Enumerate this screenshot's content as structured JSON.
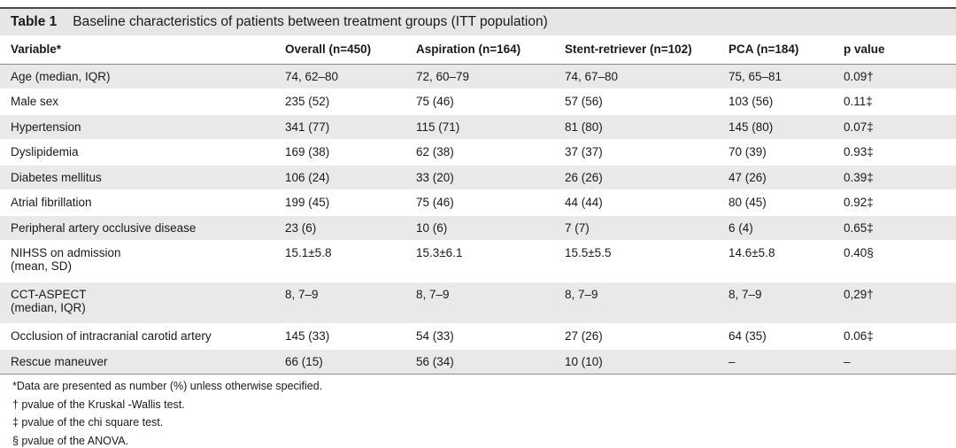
{
  "table": {
    "number": "Table 1",
    "caption": "Baseline characteristics of patients between treatment groups (ITT population)",
    "headers": [
      "Variable*",
      "Overall (n=450)",
      "Aspiration (n=164)",
      "Stent-retriever (n=102)",
      "PCA (n=184)",
      "p value"
    ],
    "rows": [
      {
        "variable": [
          "Age (median, IQR)"
        ],
        "overall": "74, 62–80",
        "aspiration": "72, 60–79",
        "stent": "74, 67–80",
        "pca": "75, 65–81",
        "p": "0.09†"
      },
      {
        "variable": [
          "Male sex"
        ],
        "overall": "235 (52)",
        "aspiration": "75 (46)",
        "stent": "57 (56)",
        "pca": "103 (56)",
        "p": "0.11‡"
      },
      {
        "variable": [
          "Hypertension"
        ],
        "overall": "341 (77)",
        "aspiration": "115 (71)",
        "stent": "81 (80)",
        "pca": "145 (80)",
        "p": "0.07‡"
      },
      {
        "variable": [
          "Dyslipidemia"
        ],
        "overall": "169 (38)",
        "aspiration": "62 (38)",
        "stent": "37 (37)",
        "pca": "70 (39)",
        "p": "0.93‡"
      },
      {
        "variable": [
          "Diabetes mellitus"
        ],
        "overall": "106 (24)",
        "aspiration": "33 (20)",
        "stent": "26 (26)",
        "pca": "47 (26)",
        "p": "0.39‡"
      },
      {
        "variable": [
          "Atrial fibrillation"
        ],
        "overall": "199 (45)",
        "aspiration": "75 (46)",
        "stent": "44 (44)",
        "pca": "80 (45)",
        "p": "0.92‡"
      },
      {
        "variable": [
          "Peripheral artery occlusive disease"
        ],
        "overall": "23 (6)",
        "aspiration": "10 (6)",
        "stent": "7 (7)",
        "pca": "6 (4)",
        "p": "0.65‡"
      },
      {
        "variable": [
          "NIHSS on admission",
          "(mean, SD)"
        ],
        "overall": "15.1±5.8",
        "aspiration": "15.3±6.1",
        "stent": "15.5±5.5",
        "pca": "14.6±5.8",
        "p": "0.40§"
      },
      {
        "variable": [
          "CCT-ASPECT",
          "(median, IQR)"
        ],
        "overall": "8, 7–9",
        "aspiration": "8, 7–9",
        "stent": "8, 7–9",
        "pca": "8, 7–9",
        "p": "0,29†"
      },
      {
        "variable": [
          "Occlusion of intracranial carotid artery"
        ],
        "overall": "145 (33)",
        "aspiration": "54 (33)",
        "stent": "27 (26)",
        "pca": "64 (35)",
        "p": "0.06‡"
      },
      {
        "variable": [
          "Rescue maneuver"
        ],
        "overall": "66 (15)",
        "aspiration": "56 (34)",
        "stent": "10 (10)",
        "pca": "–",
        "p": "–"
      }
    ],
    "footnotes": [
      "*Data are presented as number (%) unless otherwise specified.",
      "† pvalue of the Kruskal -Wallis test.",
      "‡ pvalue of the chi square test.",
      "§ pvalue of the ANOVA."
    ]
  }
}
